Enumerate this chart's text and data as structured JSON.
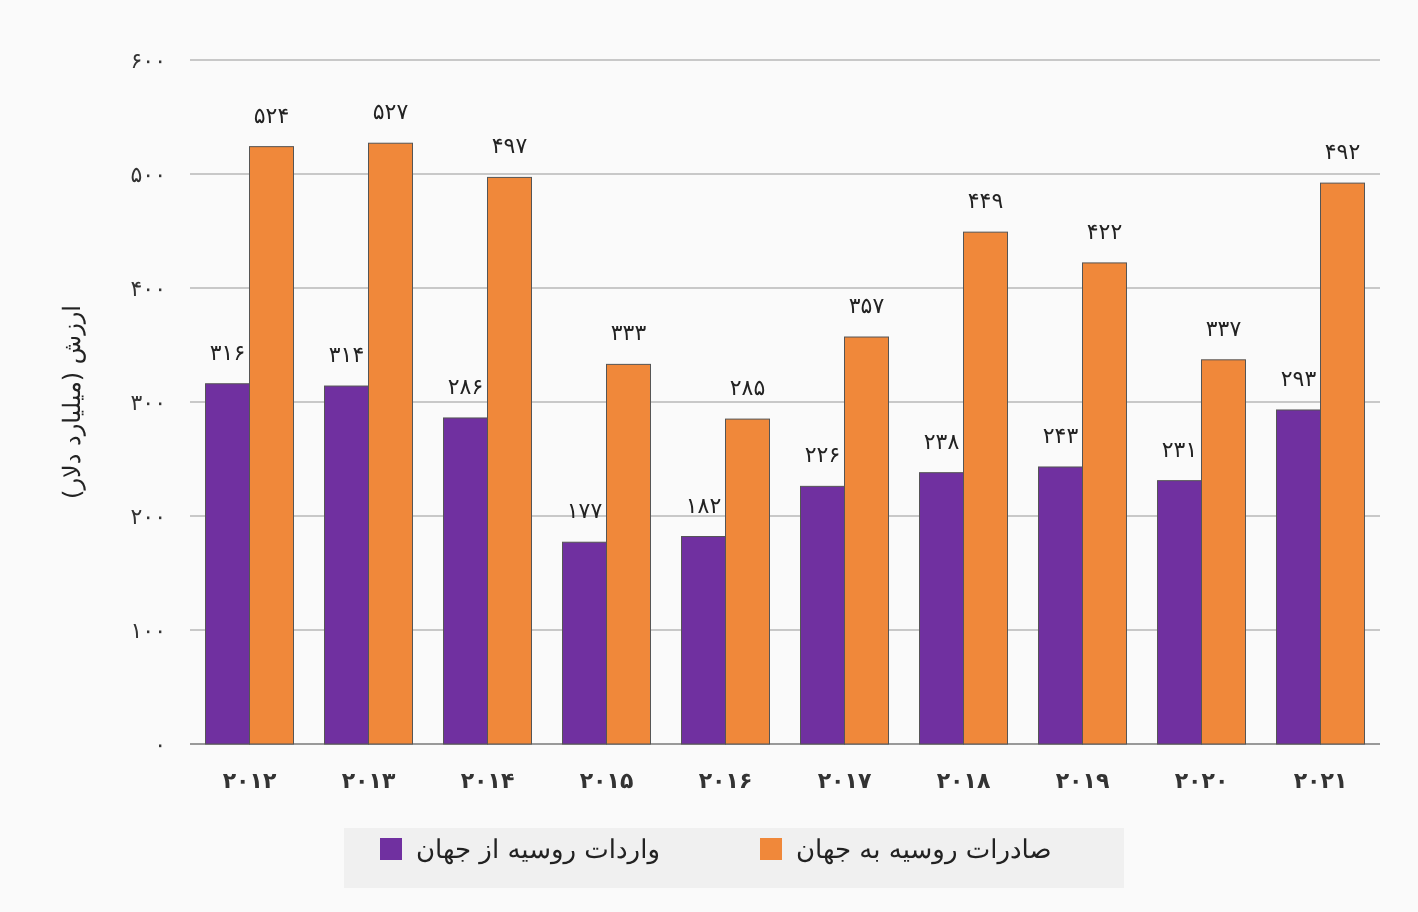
{
  "chart_data": {
    "type": "bar",
    "ylabel": "ارزش (میلیارد دلار)",
    "categories": [
      "۲۰۱۲",
      "۲۰۱۳",
      "۲۰۱۴",
      "۲۰۱۵",
      "۲۰۱۶",
      "۲۰۱۷",
      "۲۰۱۸",
      "۲۰۱۹",
      "۲۰۲۰",
      "۲۰۲۱"
    ],
    "series": [
      {
        "name": "واردات روسیه از جهان",
        "color": "#7030a0",
        "values": [
          316,
          314,
          286,
          177,
          182,
          226,
          238,
          243,
          231,
          293
        ],
        "value_labels": [
          "۳۱۶",
          "۳۱۴",
          "۲۸۶",
          "۱۷۷",
          "۱۸۲",
          "۲۲۶",
          "۲۳۸",
          "۲۴۳",
          "۲۳۱",
          "۲۹۳"
        ]
      },
      {
        "name": "صادرات روسیه به جهان",
        "color": "#f0883a",
        "values": [
          524,
          527,
          497,
          333,
          285,
          357,
          449,
          422,
          337,
          492
        ],
        "value_labels": [
          "۵۲۴",
          "۵۲۷",
          "۴۹۷",
          "۳۳۳",
          "۲۸۵",
          "۳۵۷",
          "۴۴۹",
          "۴۲۲",
          "۳۳۷",
          "۴۹۲"
        ]
      }
    ],
    "ylim": [
      0,
      600
    ],
    "yticks": [
      {
        "value": 0,
        "label": "۰"
      },
      {
        "value": 100,
        "label": "۱۰۰"
      },
      {
        "value": 200,
        "label": "۲۰۰"
      },
      {
        "value": 300,
        "label": "۳۰۰"
      },
      {
        "value": 400,
        "label": "۴۰۰"
      },
      {
        "value": 500,
        "label": "۵۰۰"
      },
      {
        "value": 600,
        "label": "۶۰۰"
      }
    ],
    "grid": "y",
    "legend": "bottom"
  }
}
